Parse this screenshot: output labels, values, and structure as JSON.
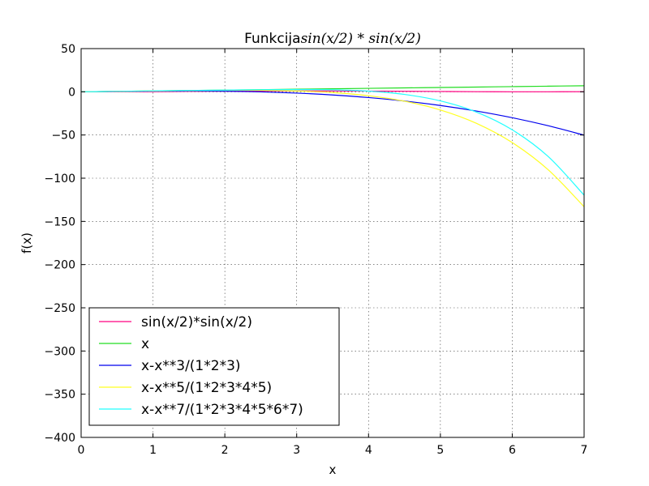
{
  "chart_data": {
    "type": "line",
    "title_text": "Funkcija",
    "title_math": "sin(x/2) * sin(x/2)",
    "xlabel": "x",
    "ylabel": "f(x)",
    "xlim": [
      0,
      7
    ],
    "ylim": [
      -400,
      50
    ],
    "x_ticks": [
      0,
      1,
      2,
      3,
      4,
      5,
      6,
      7
    ],
    "x_tick_labels": [
      "0",
      "1",
      "2",
      "3",
      "4",
      "5",
      "6",
      "7"
    ],
    "y_ticks": [
      50,
      0,
      -50,
      -100,
      -150,
      -200,
      -250,
      -300,
      -350,
      -400
    ],
    "y_tick_labels": [
      "50",
      "0",
      "−50",
      "−100",
      "−150",
      "−200",
      "−250",
      "−300",
      "−350",
      "−400"
    ],
    "grid": true,
    "legend_position": "lower-left",
    "x": [
      0,
      0.5,
      1,
      1.5,
      2,
      2.5,
      3,
      3.5,
      4,
      4.5,
      5,
      5.5,
      6,
      6.5,
      7
    ],
    "series": [
      {
        "name": "sin(x/2)*sin(x/2)",
        "color": "#ff0080",
        "values": [
          0,
          0.06,
          0.23,
          0.47,
          0.71,
          0.9,
          1.0,
          0.97,
          0.83,
          0.61,
          0.36,
          0.14,
          0.02,
          0.01,
          0.12
        ]
      },
      {
        "name": "x",
        "color": "#22dd22",
        "values": [
          0,
          0.5,
          1,
          1.5,
          2,
          2.5,
          3,
          3.5,
          4,
          4.5,
          5,
          5.5,
          6,
          6.5,
          7
        ]
      },
      {
        "name": "x-x**3/(1*2*3)",
        "color": "#0000ee",
        "values": [
          0,
          0.48,
          0.83,
          0.94,
          0.67,
          -0.1,
          -1.5,
          -3.65,
          -6.67,
          -10.69,
          -15.83,
          -22.23,
          -30.0,
          -39.27,
          -50.17
        ]
      },
      {
        "name": "x-x**5/(1*2*3*4*5)",
        "color": "#ffff22",
        "values": [
          0,
          0.5,
          0.99,
          1.44,
          1.73,
          1.69,
          0.98,
          -0.88,
          -4.53,
          -10.88,
          -21.04,
          -36.44,
          -58.8,
          -90.23,
          -133.06
        ]
      },
      {
        "name": "x-x**7/(1*2*3*4*5*6*7)",
        "color": "#22ffff",
        "values": [
          0,
          0.5,
          1.0,
          1.5,
          1.97,
          2.38,
          2.57,
          2.3,
          0.75,
          -3.04,
          -10.5,
          -23.38,
          -44.0,
          -74.9,
          -119.6
        ]
      }
    ]
  }
}
